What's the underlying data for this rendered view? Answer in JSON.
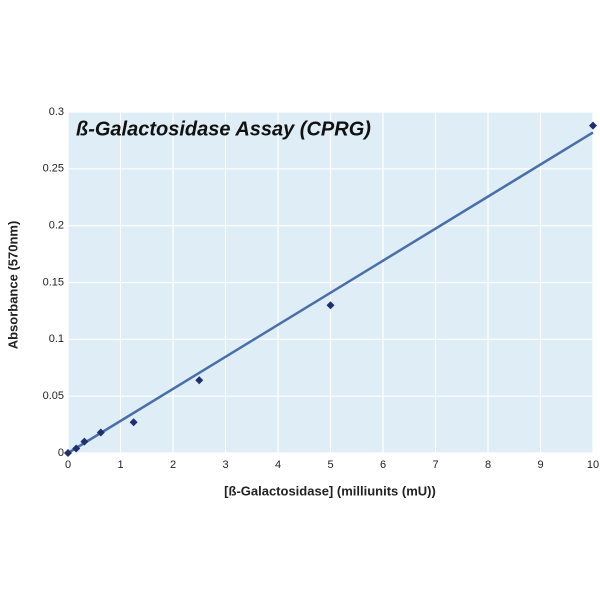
{
  "chart_data": {
    "type": "scatter",
    "title": "ß-Galactosidase Assay (CPRG)",
    "x_label": "[ß-Galactosidase] (milliunits (mU))",
    "y_label": "Absorbance (570nm)",
    "x": [
      0,
      0.156,
      0.3125,
      0.625,
      1.25,
      2.5,
      5,
      10
    ],
    "values": [
      0,
      0.004,
      0.01,
      0.018,
      0.027,
      0.064,
      0.13,
      0.288
    ],
    "color": "#1f2f6e",
    "trend_line": {
      "x": [
        0,
        10
      ],
      "values": [
        0,
        0.282
      ],
      "color": "#4a6fa8"
    },
    "xlim": [
      0,
      10
    ],
    "ylim": [
      0,
      0.3
    ],
    "xticks": [
      0,
      1,
      2,
      3,
      4,
      5,
      6,
      7,
      8,
      9,
      10
    ],
    "yticks": [
      0,
      0.05,
      0.1,
      0.15,
      0.2,
      0.25,
      0.3
    ],
    "grid": true
  }
}
